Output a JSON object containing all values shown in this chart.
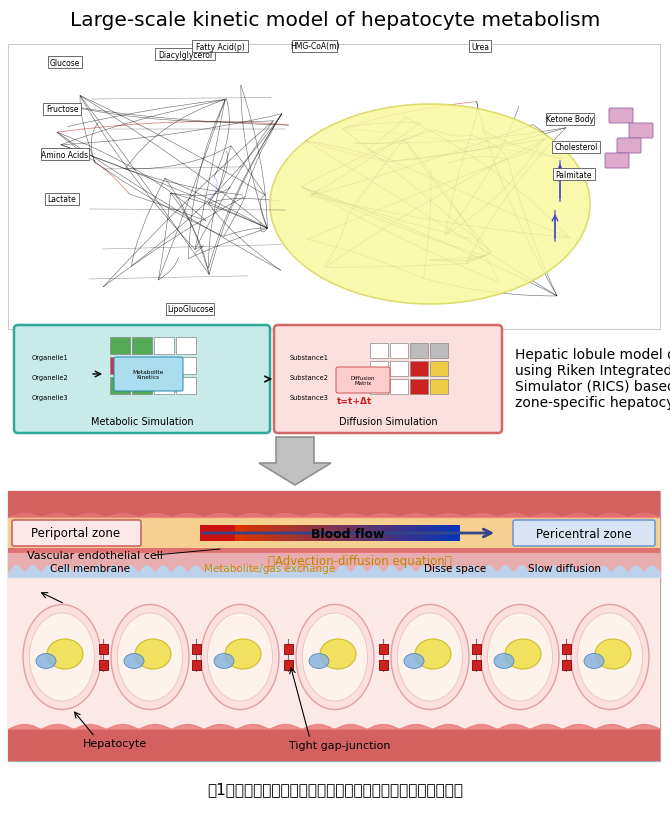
{
  "title": "Large-scale kinetic model of hepatocyte metabolism",
  "caption": "図1：精緻な肝細胞代謝モデルから肝臓シミュレータへの拡張",
  "rics_text_1": "Hepatic lobule model developed",
  "rics_text_2": "using Riken Integrated Cell",
  "rics_text_3": "Simulator (RICS) based on the",
  "rics_text_4": "zone-specific hepatocyte model",
  "blood_flow_label": "Blood flow",
  "periportal_label": "Periportal zone",
  "pericentral_label": "Pericentral zone",
  "vascular_label": "Vascular endothelial cell",
  "advection_label": "（Advection-diffusion equation）",
  "cell_membrane_label": "Cell membrane",
  "metabolite_label": "Metabolite/gas exchange",
  "disse_label": "Disse space",
  "slow_diff_label": "Slow diffusion",
  "hepatocyte_label": "Hepatocyte",
  "tight_gap_label": "Tight gap-junction",
  "metabolic_sim_label": "Metabolic Simulation",
  "diffusion_sim_label": "Diffusion Simulation"
}
